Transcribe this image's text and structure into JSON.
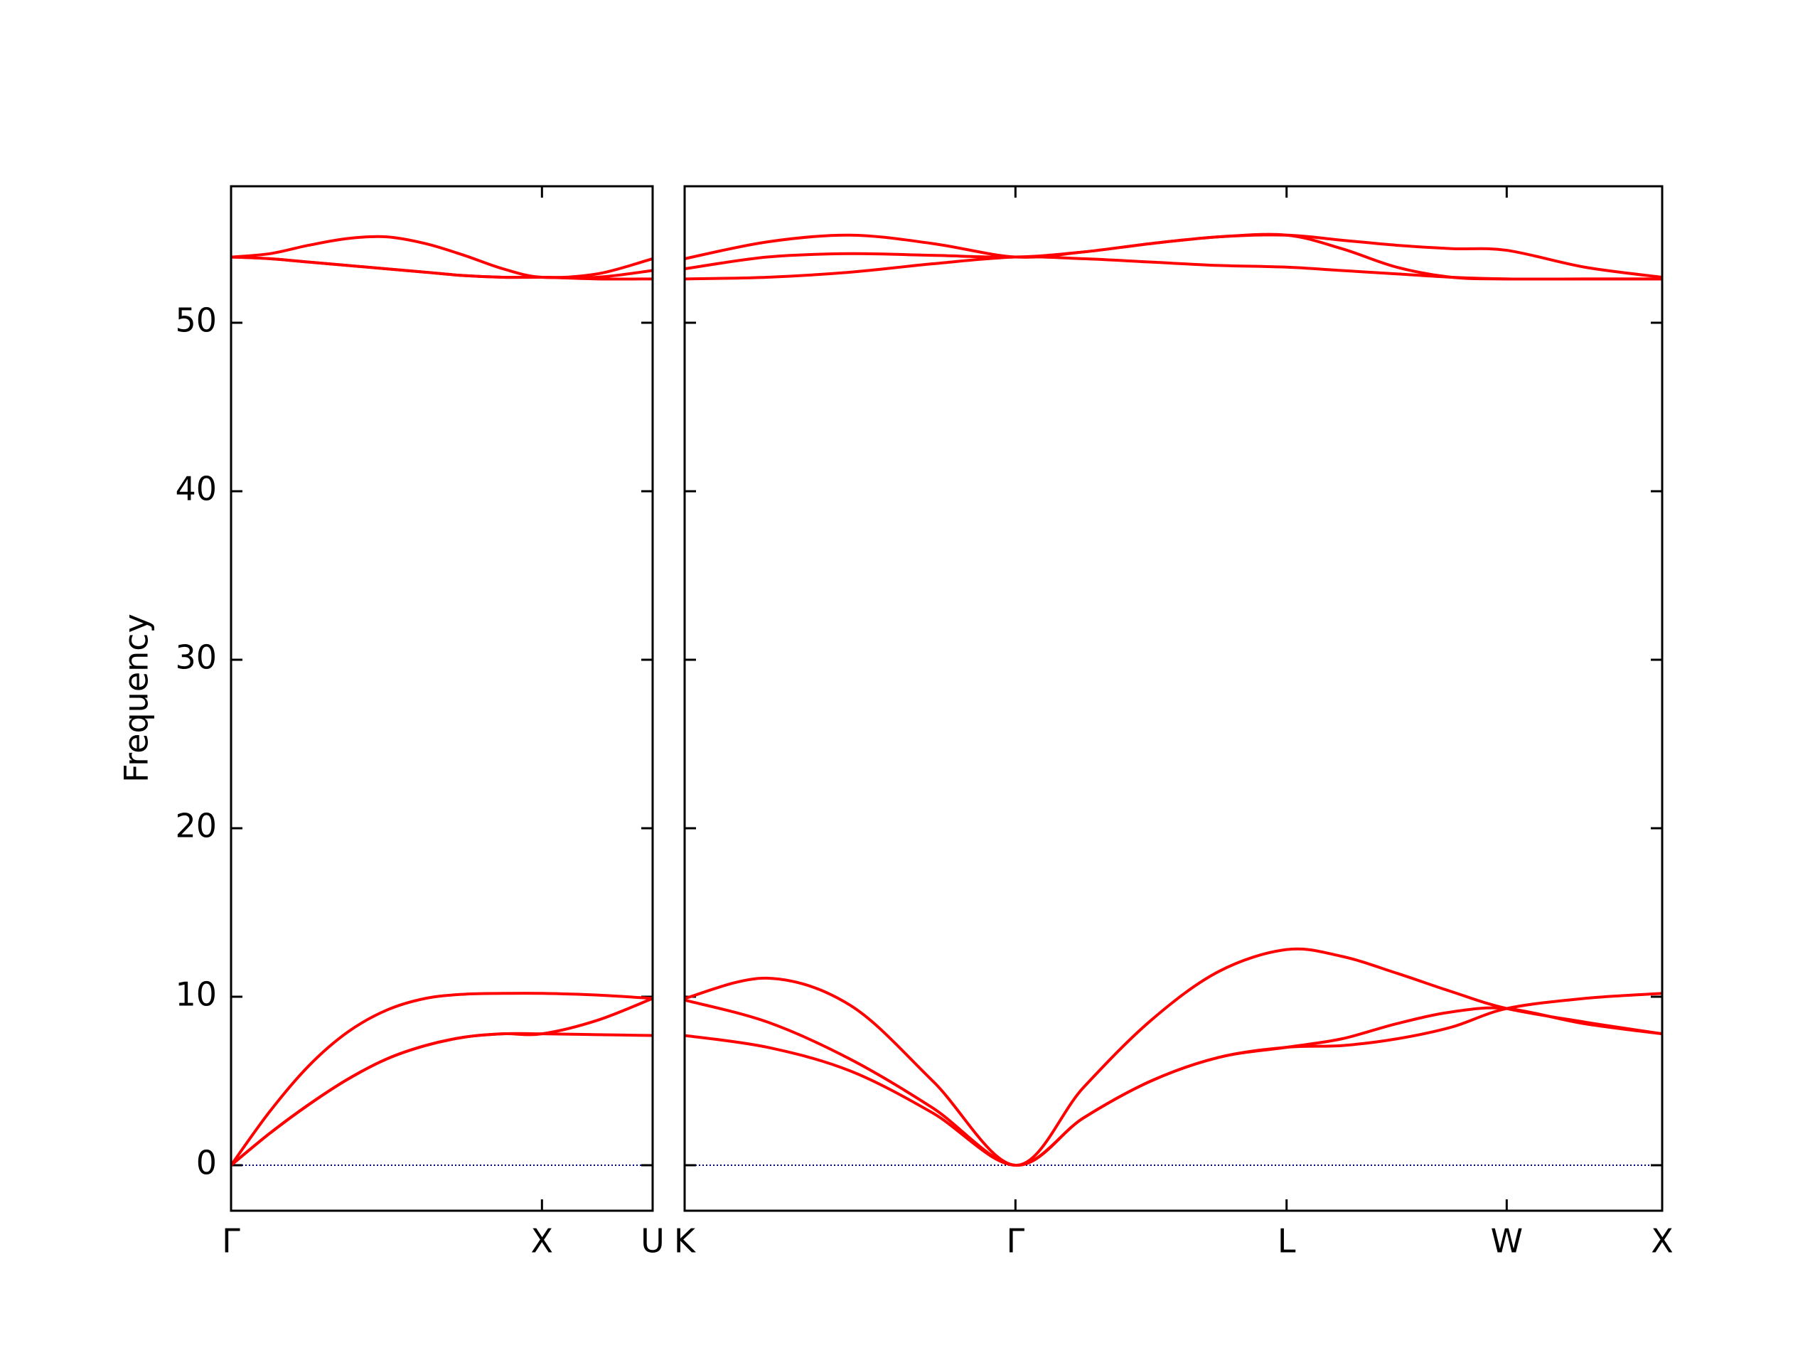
{
  "chart_data": [
    {
      "type": "line",
      "ylabel": "Frequency",
      "x": [
        0,
        0.125,
        0.25,
        0.375,
        0.5,
        0.625,
        0.75,
        0.875,
        1.0,
        1.178,
        1.356
      ],
      "xlim": [
        0,
        1.356
      ],
      "xticks": [
        {
          "value": 0,
          "label": "Γ"
        },
        {
          "value": 1.0,
          "label": "X"
        },
        {
          "value": 1.356,
          "label": "U"
        }
      ],
      "ylim": [
        -2.7,
        58.1
      ],
      "yticks": [
        0,
        10,
        20,
        30,
        40,
        50
      ],
      "ytick_labels": true,
      "hline": 0,
      "hline_color": "#00008b",
      "series": [
        {
          "color": "#ff0000",
          "values": [
            0,
            3.2,
            5.9,
            7.9,
            9.2,
            9.9,
            10.15,
            10.2,
            10.2,
            10.1,
            9.9
          ]
        },
        {
          "color": "#ff0000",
          "values": [
            0,
            1.9,
            3.6,
            5.1,
            6.3,
            7.1,
            7.6,
            7.8,
            7.8,
            8.6,
            9.9
          ]
        },
        {
          "color": "#ff0000",
          "values": [
            0,
            1.9,
            3.6,
            5.1,
            6.3,
            7.1,
            7.6,
            7.8,
            7.8,
            7.75,
            7.7
          ]
        },
        {
          "color": "#ff0000",
          "values": [
            53.9,
            54.1,
            54.6,
            55.0,
            55.1,
            54.7,
            54.0,
            53.2,
            52.7,
            52.9,
            53.8
          ]
        },
        {
          "color": "#ff0000",
          "values": [
            53.9,
            53.8,
            53.6,
            53.4,
            53.2,
            53.0,
            52.8,
            52.7,
            52.7,
            52.7,
            53.1
          ]
        },
        {
          "color": "#ff0000",
          "values": [
            53.9,
            53.8,
            53.6,
            53.4,
            53.2,
            53.0,
            52.8,
            52.7,
            52.7,
            52.6,
            52.6
          ]
        }
      ]
    },
    {
      "type": "line",
      "x": [
        0,
        0.266,
        0.532,
        0.798,
        1.064,
        1.282,
        1.5,
        1.718,
        1.936,
        2.113,
        2.29,
        2.467,
        2.644,
        2.894,
        3.144
      ],
      "xlim": [
        0,
        3.144
      ],
      "xticks": [
        {
          "value": 0,
          "label": "K"
        },
        {
          "value": 1.064,
          "label": "Γ"
        },
        {
          "value": 1.936,
          "label": "L"
        },
        {
          "value": 2.644,
          "label": "W"
        },
        {
          "value": 3.144,
          "label": "X"
        }
      ],
      "ylim": [
        -2.7,
        58.1
      ],
      "yticks": [
        0,
        10,
        20,
        30,
        40,
        50
      ],
      "ytick_labels": false,
      "hline": 0,
      "hline_color": "#00008b",
      "series": [
        {
          "color": "#ff0000",
          "values": [
            9.9,
            11.1,
            9.5,
            5.0,
            0,
            4.6,
            8.6,
            11.5,
            12.8,
            12.4,
            11.4,
            10.3,
            9.3,
            8.5,
            7.8
          ]
        },
        {
          "color": "#ff0000",
          "values": [
            9.8,
            8.5,
            6.3,
            3.4,
            0,
            2.8,
            5.0,
            6.4,
            7.0,
            7.5,
            8.4,
            9.1,
            9.3,
            8.4,
            7.8
          ]
        },
        {
          "color": "#ff0000",
          "values": [
            7.7,
            7.0,
            5.6,
            3.1,
            0,
            2.8,
            5.0,
            6.4,
            7.0,
            7.1,
            7.5,
            8.2,
            9.3,
            9.9,
            10.2
          ]
        },
        {
          "color": "#ff0000",
          "values": [
            53.8,
            54.8,
            55.2,
            54.7,
            53.9,
            54.2,
            54.7,
            55.1,
            55.2,
            54.9,
            54.6,
            54.4,
            54.3,
            53.3,
            52.7
          ]
        },
        {
          "color": "#ff0000",
          "values": [
            53.2,
            53.9,
            54.1,
            54.0,
            53.9,
            54.2,
            54.7,
            55.1,
            55.2,
            54.4,
            53.3,
            52.7,
            52.6,
            52.6,
            52.6
          ]
        },
        {
          "color": "#ff0000",
          "values": [
            52.6,
            52.7,
            53.0,
            53.5,
            53.9,
            53.8,
            53.6,
            53.4,
            53.3,
            53.1,
            52.9,
            52.7,
            52.6,
            52.6,
            52.6
          ]
        }
      ]
    }
  ]
}
